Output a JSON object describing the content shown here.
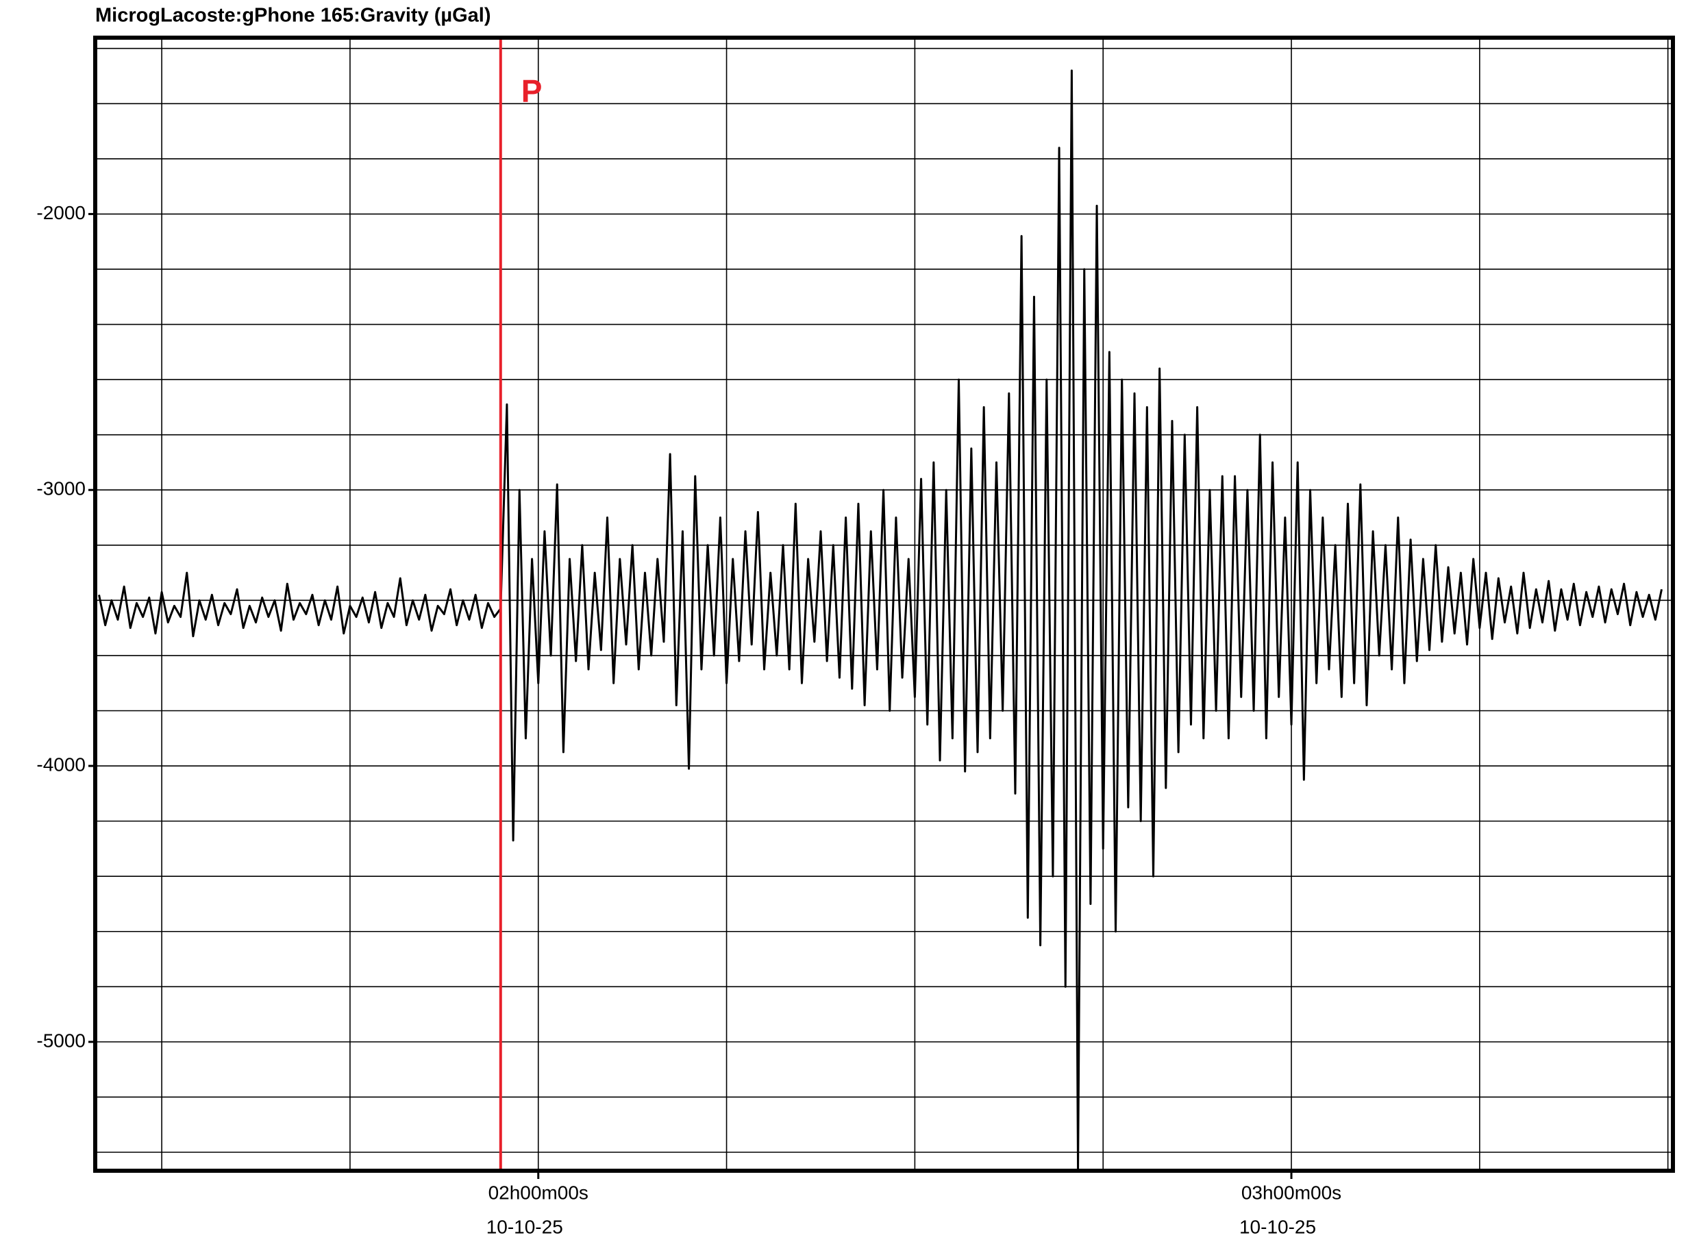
{
  "chart_data": {
    "type": "line",
    "title": "MicrogLacoste:gPhone 165:Gravity (µGal)",
    "color": "#000000",
    "grid": true,
    "xlim": [
      84.7,
      210.4
    ],
    "xticks": [
      {
        "value": 120,
        "label": "02h00m00s",
        "sublabel": "10-10-25"
      },
      {
        "value": 180,
        "label": "03h00m00s",
        "sublabel": "10-10-25"
      }
    ],
    "xgrid": [
      90,
      105,
      120,
      135,
      150,
      165,
      180,
      195,
      210
    ],
    "ylim": [
      -5467,
      -1361
    ],
    "yticks": [
      -2000,
      -3000,
      -4000,
      -5000
    ],
    "ygrid": [
      -1400,
      -1600,
      -1800,
      -2000,
      -2200,
      -2400,
      -2600,
      -2800,
      -3000,
      -3200,
      -3400,
      -3600,
      -3800,
      -4000,
      -4200,
      -4400,
      -4600,
      -4800,
      -5000,
      -5200,
      -5400
    ],
    "annotations": [
      {
        "text": "P",
        "x": 117,
        "color": "#e8202a"
      }
    ],
    "x": [
      85,
      85.5,
      86,
      86.5,
      87,
      87.5,
      88,
      88.5,
      89,
      89.5,
      90,
      90.5,
      91,
      91.5,
      92,
      92.5,
      93,
      93.5,
      94,
      94.5,
      95,
      95.5,
      96,
      96.5,
      97,
      97.5,
      98,
      98.5,
      99,
      99.5,
      100,
      100.5,
      101,
      101.5,
      102,
      102.5,
      103,
      103.5,
      104,
      104.5,
      105,
      105.5,
      106,
      106.5,
      107,
      107.5,
      108,
      108.5,
      109,
      109.5,
      110,
      110.5,
      111,
      111.5,
      112,
      112.5,
      113,
      113.5,
      114,
      114.5,
      115,
      115.5,
      116,
      116.5,
      117,
      117.5,
      118,
      118.5,
      119,
      119.5,
      120,
      120.5,
      121,
      121.5,
      122,
      122.5,
      123,
      123.5,
      124,
      124.5,
      125,
      125.5,
      126,
      126.5,
      127,
      127.5,
      128,
      128.5,
      129,
      129.5,
      130,
      130.5,
      131,
      131.5,
      132,
      132.5,
      133,
      133.5,
      134,
      134.5,
      135,
      135.5,
      136,
      136.5,
      137,
      137.5,
      138,
      138.5,
      139,
      139.5,
      140,
      140.5,
      141,
      141.5,
      142,
      142.5,
      143,
      143.5,
      144,
      144.5,
      145,
      145.5,
      146,
      146.5,
      147,
      147.5,
      148,
      148.5,
      149,
      149.5,
      150,
      150.5,
      151,
      151.5,
      152,
      152.5,
      153,
      153.5,
      154,
      154.5,
      155,
      155.5,
      156,
      156.5,
      157,
      157.5,
      158,
      158.5,
      159,
      159.5,
      160,
      160.5,
      161,
      161.5,
      162,
      162.5,
      163,
      163.5,
      164,
      164.5,
      165,
      165.5,
      166,
      166.5,
      167,
      167.5,
      168,
      168.5,
      169,
      169.5,
      170,
      170.5,
      171,
      171.5,
      172,
      172.5,
      173,
      173.5,
      174,
      174.5,
      175,
      175.5,
      176,
      176.5,
      177,
      177.5,
      178,
      178.5,
      179,
      179.5,
      180,
      180.5,
      181,
      181.5,
      182,
      182.5,
      183,
      183.5,
      184,
      184.5,
      185,
      185.5,
      186,
      186.5,
      187,
      187.5,
      188,
      188.5,
      189,
      189.5,
      190,
      190.5,
      191,
      191.5,
      192,
      192.5,
      193,
      193.5,
      194,
      194.5,
      195,
      195.5,
      196,
      196.5,
      197,
      197.5,
      198,
      198.5,
      199,
      199.5,
      200,
      200.5,
      201,
      201.5,
      202,
      202.5,
      203,
      203.5,
      204,
      204.5,
      205,
      205.5,
      206,
      206.5,
      207,
      207.5,
      208,
      208.5,
      209,
      209.5
    ],
    "values": [
      -3380,
      -3490,
      -3400,
      -3470,
      -3350,
      -3500,
      -3410,
      -3460,
      -3390,
      -3520,
      -3370,
      -3480,
      -3420,
      -3460,
      -3300,
      -3530,
      -3400,
      -3470,
      -3380,
      -3490,
      -3410,
      -3450,
      -3360,
      -3500,
      -3420,
      -3480,
      -3390,
      -3460,
      -3400,
      -3510,
      -3340,
      -3470,
      -3410,
      -3450,
      -3380,
      -3490,
      -3400,
      -3470,
      -3350,
      -3520,
      -3420,
      -3460,
      -3390,
      -3480,
      -3370,
      -3500,
      -3410,
      -3460,
      -3320,
      -3490,
      -3400,
      -3470,
      -3380,
      -3510,
      -3420,
      -3450,
      -3360,
      -3490,
      -3400,
      -3470,
      -3380,
      -3500,
      -3410,
      -3460,
      -3430,
      -2690,
      -4270,
      -3000,
      -3900,
      -3250,
      -3700,
      -3150,
      -3600,
      -2980,
      -3950,
      -3250,
      -3620,
      -3200,
      -3650,
      -3300,
      -3580,
      -3100,
      -3700,
      -3250,
      -3560,
      -3200,
      -3650,
      -3300,
      -3600,
      -3250,
      -3550,
      -2870,
      -3780,
      -3150,
      -4010,
      -2950,
      -3650,
      -3200,
      -3600,
      -3100,
      -3700,
      -3250,
      -3620,
      -3150,
      -3560,
      -3080,
      -3650,
      -3300,
      -3600,
      -3200,
      -3650,
      -3050,
      -3700,
      -3250,
      -3550,
      -3150,
      -3620,
      -3200,
      -3680,
      -3100,
      -3720,
      -3050,
      -3780,
      -3150,
      -3650,
      -3000,
      -3800,
      -3100,
      -3680,
      -3250,
      -3750,
      -2960,
      -3850,
      -2900,
      -3980,
      -3000,
      -3900,
      -2600,
      -4020,
      -2850,
      -3950,
      -2700,
      -3900,
      -2900,
      -3800,
      -2650,
      -4100,
      -2080,
      -4550,
      -2300,
      -4650,
      -2600,
      -4400,
      -1760,
      -4800,
      -1480,
      -5460,
      -2200,
      -4500,
      -1970,
      -4300,
      -2500,
      -4600,
      -2600,
      -4150,
      -2650,
      -4200,
      -2700,
      -4400,
      -2560,
      -4080,
      -2750,
      -3950,
      -2800,
      -3850,
      -2700,
      -3900,
      -3000,
      -3800,
      -2950,
      -3900,
      -2950,
      -3750,
      -3000,
      -3800,
      -2800,
      -3900,
      -2900,
      -3750,
      -3100,
      -3850,
      -2900,
      -4050,
      -3000,
      -3700,
      -3100,
      -3650,
      -3200,
      -3750,
      -3050,
      -3700,
      -2980,
      -3780,
      -3150,
      -3600,
      -3200,
      -3650,
      -3100,
      -3700,
      -3180,
      -3620,
      -3250,
      -3580,
      -3200,
      -3550,
      -3280,
      -3520,
      -3300,
      -3560,
      -3250,
      -3500,
      -3300,
      -3540,
      -3320,
      -3480,
      -3350,
      -3520,
      -3300,
      -3500,
      -3360,
      -3480,
      -3330,
      -3510,
      -3360,
      -3470,
      -3340,
      -3490,
      -3370,
      -3460,
      -3350,
      -3480,
      -3360,
      -3450,
      -3340,
      -3490,
      -3370,
      -3460,
      -3380,
      -3470,
      -3360
    ]
  }
}
